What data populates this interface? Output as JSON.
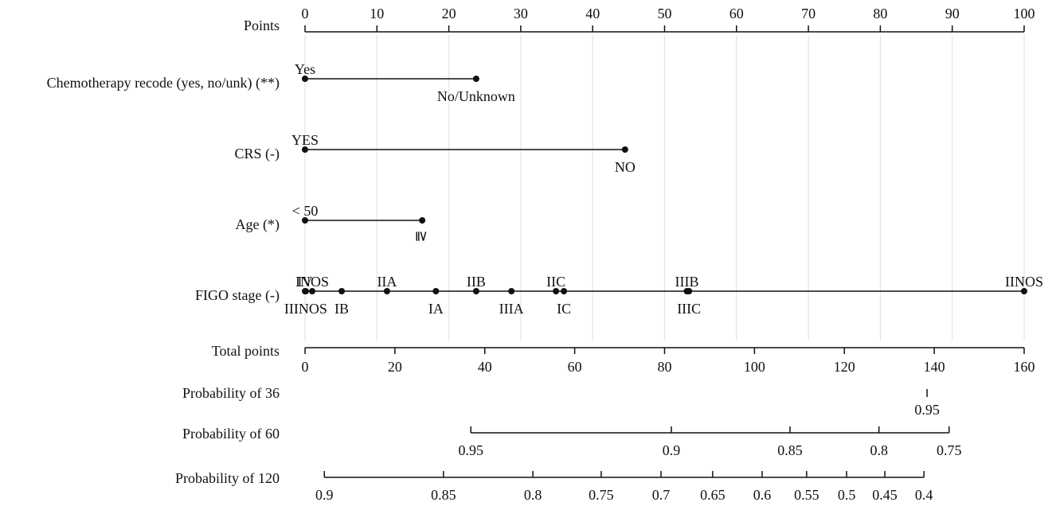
{
  "chart_data": {
    "type": "nomogram",
    "points_axis": {
      "label": "Points",
      "xlim": [
        0,
        100
      ],
      "xticks": [
        0,
        10,
        20,
        30,
        40,
        50,
        60,
        70,
        80,
        90,
        100
      ]
    },
    "grid": true,
    "variables": [
      {
        "label": "Chemotherapy recode (yes, no/unk) (**)",
        "levels": [
          {
            "name": "Yes",
            "points": 0
          },
          {
            "name": "No/Unknown",
            "points": 23.8
          }
        ]
      },
      {
        "label": "CRS (-)",
        "levels": [
          {
            "name": "YES",
            "points": 0
          },
          {
            "name": "NO",
            "points": 44.5
          }
        ]
      },
      {
        "label": "Age (*)",
        "levels": [
          {
            "name": "< 50",
            "points": 0
          },
          {
            "name": "≧",
            "points": 16.3
          }
        ]
      },
      {
        "label": "FIGO stage (-)",
        "levels": [
          {
            "name": "IV",
            "points": 0
          },
          {
            "name": "IIINOS",
            "points": 0.1
          },
          {
            "name": "INOS",
            "points": 1.0
          },
          {
            "name": "IB",
            "points": 5.1
          },
          {
            "name": "IIA",
            "points": 11.4
          },
          {
            "name": "IA",
            "points": 18.2
          },
          {
            "name": "IIB",
            "points": 23.8
          },
          {
            "name": "IIIA",
            "points": 28.7
          },
          {
            "name": "IIC",
            "points": 34.9
          },
          {
            "name": "IC",
            "points": 36.0
          },
          {
            "name": "IIIB",
            "points": 53.1
          },
          {
            "name": "IIIC",
            "points": 53.4
          },
          {
            "name": "IINOS",
            "points": 100
          }
        ]
      }
    ],
    "total_points": {
      "label": "Total points",
      "xlim": [
        0,
        160
      ],
      "xticks": [
        0,
        20,
        40,
        60,
        80,
        100,
        120,
        140,
        160
      ]
    },
    "probability_scales": [
      {
        "label": "Probability of 36",
        "ticks": [
          0.95
        ],
        "total_points": [
          138.4
        ]
      },
      {
        "label": "Probability of 60",
        "ticks": [
          0.95,
          0.9,
          0.85,
          0.8,
          0.75
        ],
        "total_points": [
          36.9,
          81.5,
          107.9,
          127.7,
          143.3
        ]
      },
      {
        "label": "Probability of 120",
        "ticks": [
          0.9,
          0.85,
          0.8,
          0.75,
          0.7,
          0.65,
          0.6,
          0.55,
          0.5,
          0.45,
          0.4
        ],
        "total_points": [
          4.3,
          30.8,
          50.7,
          65.9,
          79.2,
          90.7,
          101.7,
          111.6,
          120.5,
          129.0,
          137.7
        ]
      }
    ]
  }
}
